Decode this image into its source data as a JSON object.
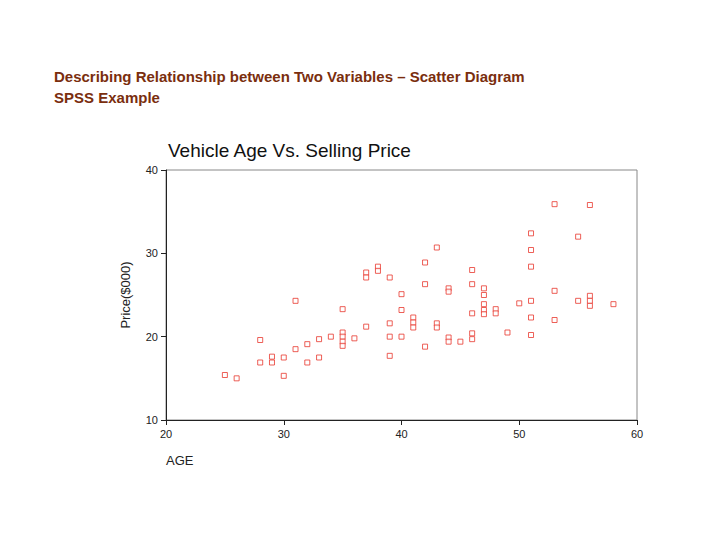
{
  "heading": [
    "Describing Relationship between Two Variables – Scatter Diagram",
    "SPSS Example"
  ],
  "chart_data": {
    "type": "scatter",
    "title": "Vehicle Age Vs. Selling Price",
    "x_label": "AGE",
    "y_label": "Price($000)",
    "x": [
      25,
      26,
      28,
      28,
      29,
      29,
      30,
      30,
      31,
      31,
      32,
      32,
      33,
      33,
      34,
      35,
      35,
      35,
      35,
      35,
      36,
      37,
      37,
      37,
      38,
      38,
      39,
      39,
      39,
      39,
      40,
      40,
      40,
      41,
      41,
      41,
      42,
      42,
      42,
      43,
      43,
      43,
      44,
      44,
      44,
      44,
      45,
      46,
      46,
      46,
      46,
      46,
      47,
      47,
      47,
      47,
      47,
      48,
      48,
      49,
      50,
      51,
      51,
      51,
      51,
      51,
      51,
      53,
      53,
      53,
      55,
      55,
      56,
      56,
      56,
      56,
      58
    ],
    "values": [
      15.4,
      15.0,
      19.6,
      16.9,
      17.6,
      16.9,
      17.5,
      15.3,
      24.3,
      18.5,
      19.1,
      16.9,
      19.7,
      17.5,
      20.0,
      23.3,
      20.5,
      20.0,
      19.4,
      18.9,
      19.8,
      21.2,
      27.7,
      27.1,
      28.4,
      27.9,
      27.1,
      21.6,
      20.0,
      17.7,
      25.1,
      23.2,
      20.0,
      22.3,
      21.7,
      21.1,
      28.9,
      26.3,
      18.8,
      30.7,
      21.6,
      21.1,
      25.8,
      25.4,
      19.9,
      19.4,
      19.4,
      28.0,
      26.3,
      22.8,
      20.4,
      19.7,
      25.8,
      25.0,
      23.9,
      23.2,
      22.7,
      23.3,
      22.8,
      20.5,
      24.0,
      32.4,
      30.4,
      28.4,
      24.3,
      22.3,
      20.2,
      35.9,
      25.5,
      22.0,
      32.0,
      24.3,
      35.8,
      24.9,
      24.3,
      23.7,
      23.9
    ],
    "color": "#e8382e",
    "marker": "square",
    "xlim": [
      20,
      60
    ],
    "xticks": [
      20,
      30,
      40,
      50,
      60
    ],
    "ylim": [
      10,
      40
    ],
    "yticks": [
      10,
      20,
      30,
      40
    ],
    "grid": false
  }
}
